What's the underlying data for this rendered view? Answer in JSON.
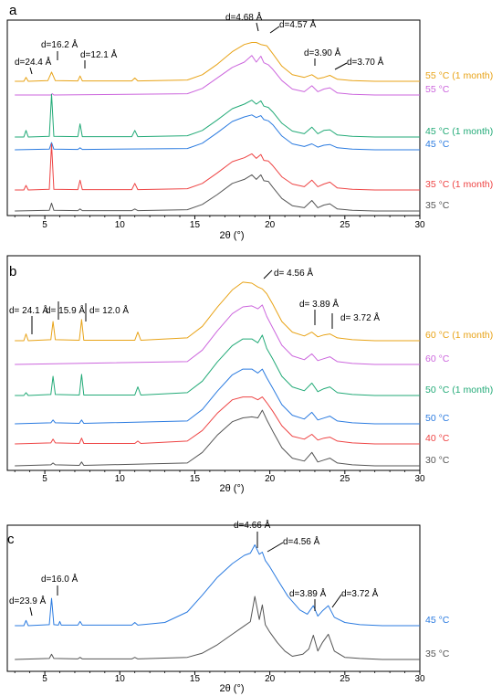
{
  "chart_data": [
    {
      "type": "line",
      "panel_label": "a",
      "xlabel": "2θ (°)",
      "xlim": [
        2.5,
        30
      ],
      "xticks": [
        5,
        10,
        15,
        20,
        25,
        30
      ],
      "grid": false,
      "series": [
        {
          "name": "55 °C (1 month)",
          "color": "#E8A317",
          "x": [
            3.0,
            3.6,
            3.75,
            3.9,
            5.2,
            5.45,
            5.7,
            7.2,
            7.35,
            7.5,
            10.8,
            11.0,
            11.2,
            14.5,
            15.5,
            16.5,
            17.5,
            18.3,
            18.8,
            19.1,
            19.4,
            19.8,
            20.2,
            20.8,
            21.5,
            22.3,
            22.8,
            23.2,
            23.6,
            24.0,
            24.5,
            25.5,
            27.0,
            30.0
          ],
          "y": [
            0,
            0,
            0.6,
            0,
            0.1,
            1.4,
            0.1,
            0.05,
            0.8,
            0.05,
            0.05,
            0.5,
            0.05,
            0.2,
            1.0,
            2.6,
            4.5,
            5.6,
            5.9,
            5.9,
            5.6,
            5.4,
            4.2,
            2.3,
            1.0,
            0.6,
            1.0,
            0.4,
            0.6,
            0.9,
            0.3,
            0.1,
            0,
            0
          ]
        },
        {
          "name": "55 °C",
          "color": "#CC66DD",
          "x": [
            3.0,
            5.4,
            5.5,
            5.6,
            14.5,
            15.5,
            16.5,
            17.5,
            18.3,
            18.8,
            19.1,
            19.4,
            19.6,
            19.9,
            20.2,
            20.8,
            21.5,
            22.3,
            22.8,
            23.2,
            23.6,
            24.0,
            24.5,
            25.5,
            27.0,
            30.0
          ],
          "y": [
            0,
            0,
            0.2,
            0,
            0.2,
            1.0,
            2.6,
            4.2,
            5.0,
            6.0,
            5.0,
            5.9,
            4.9,
            4.6,
            3.9,
            2.2,
            0.9,
            0.5,
            1.4,
            0.5,
            0.9,
            1.1,
            0.3,
            0.1,
            0,
            0
          ]
        },
        {
          "name": "45 °C (1 month)",
          "color": "#22AA77",
          "x": [
            3.0,
            3.6,
            3.75,
            3.9,
            5.3,
            5.45,
            5.6,
            7.2,
            7.35,
            7.5,
            10.8,
            11.0,
            11.2,
            14.5,
            15.5,
            16.5,
            17.5,
            18.3,
            18.8,
            19.1,
            19.4,
            19.6,
            19.9,
            20.2,
            20.8,
            21.5,
            22.3,
            22.8,
            23.2,
            23.6,
            24.0,
            24.5,
            25.5,
            27.0,
            30.0
          ],
          "y": [
            0,
            0,
            1.0,
            0,
            0.1,
            6.5,
            0.1,
            0.05,
            2.0,
            0.05,
            0.05,
            1.0,
            0.05,
            0.2,
            1.0,
            2.6,
            4.3,
            5.0,
            5.6,
            5.0,
            5.5,
            4.7,
            4.5,
            3.8,
            2.1,
            0.9,
            0.5,
            1.5,
            0.5,
            1.0,
            1.1,
            0.3,
            0.1,
            0,
            0
          ]
        },
        {
          "name": "45 °C",
          "color": "#2B7BE0",
          "x": [
            3.0,
            5.3,
            5.45,
            5.6,
            7.2,
            7.35,
            7.5,
            14.5,
            15.5,
            16.5,
            17.5,
            18.3,
            18.8,
            19.1,
            19.4,
            19.6,
            19.9,
            20.2,
            20.8,
            21.5,
            22.3,
            22.8,
            23.2,
            23.6,
            24.0,
            24.5,
            25.5,
            27.0,
            30.0
          ],
          "y": [
            0,
            0.1,
            1.1,
            0.1,
            0.05,
            0.3,
            0.05,
            0.2,
            1.0,
            2.6,
            4.3,
            5.0,
            5.3,
            4.9,
            5.2,
            4.6,
            4.4,
            3.8,
            2.1,
            0.9,
            0.5,
            0.9,
            0.4,
            0.7,
            0.8,
            0.3,
            0.1,
            0,
            0
          ]
        },
        {
          "name": "35 °C (1 month)",
          "color": "#EE4444",
          "x": [
            3.0,
            3.6,
            3.75,
            3.9,
            5.3,
            5.45,
            5.6,
            7.2,
            7.35,
            7.5,
            10.8,
            11.0,
            11.2,
            14.5,
            15.5,
            16.5,
            17.5,
            18.3,
            18.8,
            19.1,
            19.4,
            19.6,
            19.9,
            20.2,
            20.8,
            21.5,
            22.3,
            22.8,
            23.2,
            23.6,
            24.0,
            24.5,
            25.5,
            27.0,
            30.0
          ],
          "y": [
            0,
            0,
            0.7,
            0,
            0.1,
            7.0,
            0.1,
            0.05,
            1.5,
            0.05,
            0.05,
            1.0,
            0.05,
            0.2,
            1.0,
            2.6,
            4.3,
            4.9,
            5.5,
            4.8,
            5.4,
            4.5,
            4.4,
            3.7,
            2.0,
            0.9,
            0.5,
            1.5,
            0.5,
            0.9,
            1.2,
            0.3,
            0.1,
            0,
            0
          ]
        },
        {
          "name": "35 °C",
          "color": "#555555",
          "x": [
            3.0,
            5.3,
            5.45,
            5.6,
            7.2,
            7.35,
            7.5,
            10.8,
            11.0,
            11.2,
            14.5,
            15.5,
            16.5,
            17.5,
            18.3,
            18.8,
            19.1,
            19.4,
            19.6,
            19.9,
            20.2,
            20.8,
            21.5,
            22.3,
            22.8,
            23.2,
            23.6,
            24.0,
            24.5,
            25.5,
            27.0,
            30.0
          ],
          "y": [
            0,
            0.1,
            1.2,
            0.1,
            0.05,
            0.3,
            0.05,
            0.05,
            0.3,
            0.05,
            0.2,
            1.0,
            2.5,
            4.2,
            4.8,
            5.5,
            4.8,
            5.5,
            4.6,
            4.5,
            3.6,
            1.9,
            0.8,
            0.5,
            1.6,
            0.5,
            0.9,
            1.1,
            0.3,
            0.1,
            0,
            0
          ]
        }
      ],
      "annotations": [
        "d=24.4 Å",
        "d=16.2 Å",
        "d=12.1 Å",
        "d=4.68 Å",
        "d=4.57 Å",
        "d=3.90 Å",
        "d=3.70 Å"
      ]
    },
    {
      "type": "line",
      "panel_label": "b",
      "xlabel": "2θ (°)",
      "xlim": [
        2.5,
        30
      ],
      "xticks": [
        5,
        10,
        15,
        20,
        25,
        30
      ],
      "grid": false,
      "series": [
        {
          "name": "60 °C (1 month)",
          "color": "#E8A317",
          "x": [
            3.0,
            3.6,
            3.75,
            3.9,
            5.4,
            5.55,
            5.7,
            7.3,
            7.45,
            7.6,
            11.0,
            11.2,
            11.4,
            14.5,
            15.5,
            16.5,
            17.5,
            18.2,
            18.8,
            19.2,
            19.5,
            19.8,
            20.2,
            20.8,
            21.5,
            22.3,
            22.8,
            23.2,
            23.6,
            24.0,
            24.5,
            25.5,
            27.0,
            30.0
          ],
          "y": [
            0,
            0,
            0.7,
            0,
            0.1,
            2.0,
            0.1,
            0.05,
            2.2,
            0.05,
            0.05,
            0.9,
            0.05,
            0.3,
            1.5,
            3.5,
            5.3,
            6.1,
            6.0,
            5.6,
            5.4,
            4.9,
            3.8,
            2.0,
            0.9,
            0.5,
            0.9,
            0.4,
            0.6,
            0.7,
            0.3,
            0.1,
            0,
            0
          ]
        },
        {
          "name": "60 °C",
          "color": "#CC66DD",
          "x": [
            3.0,
            14.5,
            15.5,
            16.5,
            17.5,
            18.2,
            18.8,
            19.2,
            19.5,
            19.8,
            20.2,
            20.8,
            21.5,
            22.3,
            22.8,
            23.2,
            23.6,
            24.0,
            24.5,
            25.5,
            27.0,
            30.0
          ],
          "y": [
            0,
            0.3,
            1.5,
            3.5,
            5.3,
            6.0,
            6.1,
            5.8,
            6.2,
            5.0,
            3.8,
            2.0,
            0.9,
            0.5,
            1.1,
            0.4,
            0.6,
            0.8,
            0.3,
            0.1,
            0,
            0
          ]
        },
        {
          "name": "50 °C (1 month)",
          "color": "#22AA77",
          "x": [
            3.0,
            3.6,
            3.75,
            3.9,
            5.4,
            5.55,
            5.7,
            7.3,
            7.45,
            7.6,
            11.0,
            11.2,
            11.4,
            14.5,
            15.5,
            16.5,
            17.5,
            18.2,
            18.8,
            19.2,
            19.5,
            19.8,
            20.2,
            20.8,
            21.5,
            22.3,
            22.8,
            23.2,
            23.6,
            24.0,
            24.5,
            25.5,
            27.0,
            30.0
          ],
          "y": [
            0,
            0,
            0.3,
            0,
            0.1,
            2.0,
            0.1,
            0.05,
            2.2,
            0.05,
            0.05,
            0.9,
            0.05,
            0.3,
            1.5,
            3.5,
            5.2,
            5.9,
            5.9,
            5.5,
            6.3,
            4.9,
            3.8,
            2.0,
            0.9,
            0.5,
            1.3,
            0.4,
            0.7,
            0.9,
            0.3,
            0.1,
            0,
            0
          ]
        },
        {
          "name": "50 °C",
          "color": "#2B7BE0",
          "x": [
            3.0,
            5.4,
            5.55,
            5.7,
            7.3,
            7.45,
            7.6,
            14.5,
            15.5,
            16.5,
            17.5,
            18.2,
            18.8,
            19.2,
            19.5,
            19.8,
            20.2,
            20.8,
            21.5,
            22.3,
            22.8,
            23.2,
            23.6,
            24.0,
            24.5,
            25.5,
            27.0,
            30.0
          ],
          "y": [
            0,
            0.1,
            0.4,
            0.1,
            0.05,
            0.4,
            0.05,
            0.3,
            1.5,
            3.4,
            5.1,
            5.7,
            5.7,
            5.3,
            5.7,
            4.8,
            3.7,
            2.0,
            0.9,
            0.5,
            1.2,
            0.4,
            0.6,
            0.8,
            0.3,
            0.1,
            0,
            0
          ]
        },
        {
          "name": "40 °C",
          "color": "#EE4444",
          "x": [
            3.0,
            5.4,
            5.55,
            5.7,
            7.3,
            7.45,
            7.6,
            11.0,
            11.2,
            11.4,
            14.5,
            15.5,
            16.5,
            17.5,
            18.2,
            18.8,
            19.2,
            19.5,
            19.8,
            20.2,
            20.8,
            21.5,
            22.3,
            22.8,
            23.2,
            23.6,
            24.0,
            24.5,
            25.5,
            27.0,
            30.0
          ],
          "y": [
            0,
            0.1,
            0.5,
            0.1,
            0.05,
            0.6,
            0.05,
            0.05,
            0.3,
            0.05,
            0.3,
            1.4,
            3.2,
            4.6,
            4.9,
            4.9,
            4.6,
            4.9,
            4.3,
            3.4,
            1.9,
            0.8,
            0.5,
            1.0,
            0.4,
            0.6,
            0.7,
            0.3,
            0.1,
            0,
            0
          ]
        },
        {
          "name": "30 °C",
          "color": "#555555",
          "x": [
            3.0,
            5.4,
            5.55,
            5.7,
            7.3,
            7.45,
            7.6,
            14.5,
            15.5,
            16.5,
            17.5,
            18.2,
            18.8,
            19.2,
            19.5,
            19.8,
            20.2,
            20.8,
            21.5,
            22.3,
            22.8,
            23.2,
            23.6,
            24.0,
            24.5,
            25.5,
            27.0,
            30.0
          ],
          "y": [
            0,
            0.1,
            0.3,
            0.1,
            0.05,
            0.4,
            0.05,
            0.3,
            1.4,
            3.2,
            4.6,
            5.0,
            5.1,
            5.0,
            5.8,
            4.8,
            3.6,
            1.9,
            0.8,
            0.5,
            1.4,
            0.4,
            0.6,
            0.8,
            0.3,
            0.1,
            0,
            0
          ]
        }
      ],
      "annotations": [
        "d= 24.1 Å",
        "d= 15.9 Å",
        "d= 12.0 Å",
        "d= 4.56 Å",
        "d= 3.89 Å",
        "d= 3.72 Å"
      ]
    },
    {
      "type": "line",
      "panel_label": "c",
      "xlabel": "2θ (°)",
      "xlim": [
        2.5,
        30
      ],
      "xticks": [
        5,
        10,
        15,
        20,
        25,
        30
      ],
      "grid": false,
      "series": [
        {
          "name": "45 °C",
          "color": "#2B7BE0",
          "x": [
            3.0,
            3.6,
            3.75,
            3.9,
            5.3,
            5.45,
            5.6,
            5.9,
            6.0,
            6.1,
            7.2,
            7.35,
            7.5,
            10.8,
            11.0,
            11.2,
            13.0,
            14.5,
            15.5,
            16.5,
            17.5,
            18.3,
            18.7,
            19.0,
            19.3,
            19.5,
            19.7,
            20.0,
            20.5,
            21.2,
            22.0,
            22.5,
            22.9,
            23.2,
            23.5,
            23.9,
            24.3,
            25.0,
            26.0,
            27.5,
            30.0
          ],
          "y": [
            0,
            0,
            0.5,
            0,
            0.1,
            2.6,
            0.1,
            0.05,
            0.4,
            0.05,
            0.05,
            0.4,
            0.05,
            0.05,
            0.3,
            0.05,
            0.3,
            1.3,
            2.9,
            4.6,
            5.9,
            6.7,
            6.9,
            7.7,
            6.8,
            7.0,
            6.2,
            5.6,
            4.4,
            2.8,
            1.5,
            1.1,
            1.9,
            0.9,
            1.4,
            1.9,
            0.8,
            0.3,
            0.1,
            0,
            0
          ]
        },
        {
          "name": "35 °C",
          "color": "#555555",
          "x": [
            3.0,
            5.3,
            5.45,
            5.6,
            7.2,
            7.35,
            7.5,
            10.8,
            11.0,
            11.2,
            14.5,
            15.5,
            16.5,
            17.5,
            18.3,
            18.7,
            19.0,
            19.3,
            19.5,
            19.7,
            20.0,
            20.5,
            21.0,
            21.5,
            22.2,
            22.6,
            22.9,
            23.2,
            23.5,
            23.9,
            24.3,
            25.0,
            26.0,
            27.5,
            30.0
          ],
          "y": [
            0,
            0.1,
            0.5,
            0.1,
            0.05,
            0.2,
            0.05,
            0.05,
            0.2,
            0.05,
            0.2,
            0.6,
            1.4,
            2.4,
            3.2,
            3.6,
            6.0,
            3.8,
            5.2,
            3.3,
            2.6,
            1.6,
            0.8,
            0.3,
            0.5,
            1.0,
            2.3,
            0.8,
            1.6,
            2.4,
            0.8,
            0.2,
            0.1,
            0,
            0
          ]
        }
      ],
      "annotations": [
        "d=23.9 Å",
        "d=16.0 Å",
        "d=4.66 Å",
        "d=4.56 Å",
        "d=3.89 Å",
        "d=3.72 Å"
      ]
    }
  ]
}
